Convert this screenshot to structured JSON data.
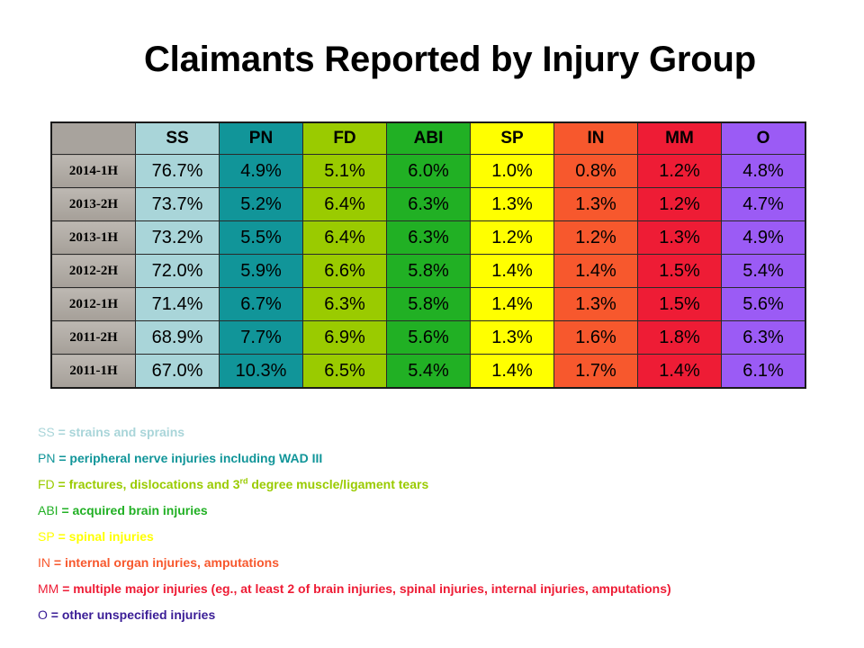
{
  "chart_data": {
    "type": "table",
    "title": "Claimants Reported by Injury Group",
    "corner": "",
    "columns": [
      "SS",
      "PN",
      "FD",
      "ABI",
      "SP",
      "IN",
      "MM",
      "O"
    ],
    "column_colors": [
      "#a9d5d9",
      "#119599",
      "#9acb00",
      "#21b024",
      "#ffff00",
      "#f7582d",
      "#ee1c35",
      "#9b5bf5"
    ],
    "column_text_colors": [
      "#a9d5d9",
      "#119599",
      "#9acb00",
      "#21b024",
      "#ffff00",
      "#f7582d",
      "#ee1c35",
      "#3a1d96"
    ],
    "rows": [
      {
        "label": "2014-1H",
        "values": [
          "76.7%",
          "4.9%",
          "5.1%",
          "6.0%",
          "1.0%",
          "0.8%",
          "1.2%",
          "4.8%"
        ]
      },
      {
        "label": "2013-2H",
        "values": [
          "73.7%",
          "5.2%",
          "6.4%",
          "6.3%",
          "1.3%",
          "1.3%",
          "1.2%",
          "4.7%"
        ]
      },
      {
        "label": "2013-1H",
        "values": [
          "73.2%",
          "5.5%",
          "6.4%",
          "6.3%",
          "1.2%",
          "1.2%",
          "1.3%",
          "4.9%"
        ]
      },
      {
        "label": "2012-2H",
        "values": [
          "72.0%",
          "5.9%",
          "6.6%",
          "5.8%",
          "1.4%",
          "1.4%",
          "1.5%",
          "5.4%"
        ]
      },
      {
        "label": "2012-1H",
        "values": [
          "71.4%",
          "6.7%",
          "6.3%",
          "5.8%",
          "1.4%",
          "1.3%",
          "1.5%",
          "5.6%"
        ]
      },
      {
        "label": "2011-2H",
        "values": [
          "68.9%",
          "7.7%",
          "6.9%",
          "5.6%",
          "1.3%",
          "1.6%",
          "1.8%",
          "6.3%"
        ]
      },
      {
        "label": "2011-1H",
        "values": [
          "67.0%",
          "10.3%",
          "6.5%",
          "5.4%",
          "1.4%",
          "1.7%",
          "1.4%",
          "6.1%"
        ]
      }
    ]
  },
  "legend": [
    {
      "abbr": "SS",
      "sep": " = ",
      "text": "strains and sprains"
    },
    {
      "abbr": "PN",
      "sep": " = ",
      "text": "peripheral nerve injuries including WAD III"
    },
    {
      "abbr": "FD",
      "sep": " = ",
      "text": "fractures, dislocations and 3",
      "sup": "rd",
      "text_after": " degree muscle/ligament tears"
    },
    {
      "abbr": "ABI",
      "sep": " = ",
      "text": "acquired brain injuries"
    },
    {
      "abbr": "SP",
      "sep": " = ",
      "text": "spinal injuries"
    },
    {
      "abbr": "IN",
      "sep": " = ",
      "text": "internal organ injuries, amputations"
    },
    {
      "abbr": "MM",
      "sep": " = ",
      "text": "multiple major injuries (eg., at least 2 of brain injuries, spinal injuries, internal injuries, amputations)"
    },
    {
      "abbr": "O",
      "sep": " = ",
      "text": "other unspecified injuries"
    }
  ]
}
